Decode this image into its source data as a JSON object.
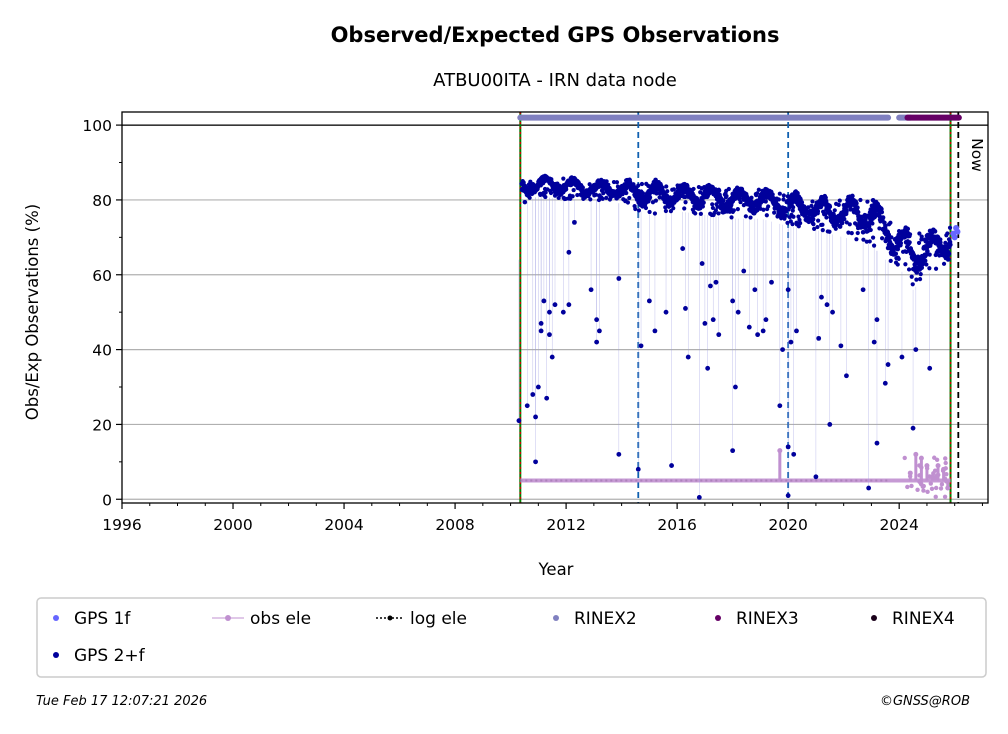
{
  "chart_data": {
    "type": "scatter",
    "title": "Observed/Expected GPS Observations",
    "subtitle": "ATBU00ITA - IRN data node",
    "xlabel": "Year",
    "ylabel": "Obs/Exp Observations (%)",
    "xlim": [
      1996,
      2027.2
    ],
    "ylim": [
      -1,
      103.5
    ],
    "x_ticks": [
      "1996",
      "2000",
      "2004",
      "2008",
      "2012",
      "2016",
      "2020",
      "2024"
    ],
    "y_ticks": [
      "0",
      "20",
      "40",
      "60",
      "80",
      "100"
    ],
    "grid": "horizontal",
    "now_label": "Now",
    "vertical_lines": [
      {
        "x": 2010.35,
        "style": "green-solid-red-dotted",
        "meaning": "start"
      },
      {
        "x": 2014.6,
        "style": "blue-dashed",
        "meaning": "event"
      },
      {
        "x": 2020.0,
        "style": "blue-dashed",
        "meaning": "event"
      },
      {
        "x": 2025.85,
        "style": "green-solid-red-dotted",
        "meaning": "end"
      },
      {
        "x": 2026.13,
        "style": "black-dashed",
        "meaning": "Now"
      }
    ],
    "series": [
      {
        "name": "GPS 2+f",
        "color": "#00009c",
        "marker": "dot",
        "envelope": {
          "x": [
            2010.4,
            2011.0,
            2012.0,
            2013.0,
            2014.0,
            2015.0,
            2016.0,
            2017.0,
            2018.0,
            2019.0,
            2020.0,
            2021.0,
            2022.0,
            2023.0,
            2023.5,
            2024.0,
            2024.5,
            2025.0,
            2025.5,
            2025.85
          ],
          "upper": [
            85,
            86,
            86,
            85,
            85,
            85,
            84,
            84,
            83,
            83,
            82,
            81,
            80,
            82,
            76,
            74,
            70,
            73,
            70,
            73
          ],
          "lower": [
            79,
            81,
            80,
            80,
            79,
            76,
            77,
            76,
            75,
            75,
            73,
            72,
            70,
            68,
            64,
            62,
            56,
            60,
            62,
            64
          ]
        },
        "outliers": [
          [
            2010.3,
            21
          ],
          [
            2010.6,
            25
          ],
          [
            2010.8,
            28
          ],
          [
            2010.9,
            22
          ],
          [
            2011.0,
            30
          ],
          [
            2011.2,
            53
          ],
          [
            2010.9,
            10
          ],
          [
            2011.4,
            44
          ],
          [
            2011.5,
            38
          ],
          [
            2011.1,
            45
          ],
          [
            2011.3,
            27
          ],
          [
            2011.6,
            52
          ],
          [
            2011.1,
            47
          ],
          [
            2011.4,
            50
          ],
          [
            2011.9,
            50
          ],
          [
            2012.1,
            66
          ],
          [
            2012.1,
            52
          ],
          [
            2012.3,
            74
          ],
          [
            2012.9,
            56
          ],
          [
            2013.1,
            48
          ],
          [
            2013.1,
            42
          ],
          [
            2013.2,
            45
          ],
          [
            2013.9,
            59
          ],
          [
            2013.9,
            12
          ],
          [
            2014.6,
            8
          ],
          [
            2014.7,
            41
          ],
          [
            2015.0,
            53
          ],
          [
            2015.2,
            45
          ],
          [
            2015.6,
            50
          ],
          [
            2015.8,
            9
          ],
          [
            2016.2,
            67
          ],
          [
            2016.3,
            51
          ],
          [
            2016.4,
            38
          ],
          [
            2016.8,
            0.5
          ],
          [
            2016.9,
            63
          ],
          [
            2017.0,
            47
          ],
          [
            2017.1,
            35
          ],
          [
            2017.2,
            57
          ],
          [
            2017.3,
            48
          ],
          [
            2017.4,
            58
          ],
          [
            2017.5,
            44
          ],
          [
            2018.0,
            53
          ],
          [
            2018.0,
            13
          ],
          [
            2018.1,
            30
          ],
          [
            2018.2,
            50
          ],
          [
            2018.4,
            61
          ],
          [
            2018.6,
            46
          ],
          [
            2018.8,
            56
          ],
          [
            2018.9,
            44
          ],
          [
            2019.1,
            45
          ],
          [
            2019.2,
            48
          ],
          [
            2019.4,
            58
          ],
          [
            2019.7,
            25
          ],
          [
            2019.8,
            40
          ],
          [
            2020.0,
            56
          ],
          [
            2020.0,
            14
          ],
          [
            2020.0,
            1
          ],
          [
            2020.1,
            42
          ],
          [
            2020.2,
            12
          ],
          [
            2020.3,
            45
          ],
          [
            2021.0,
            6
          ],
          [
            2021.1,
            43
          ],
          [
            2021.2,
            54
          ],
          [
            2021.4,
            52
          ],
          [
            2021.5,
            20
          ],
          [
            2021.6,
            50
          ],
          [
            2021.9,
            41
          ],
          [
            2022.1,
            33
          ],
          [
            2022.7,
            56
          ],
          [
            2022.9,
            3
          ],
          [
            2023.1,
            42
          ],
          [
            2023.2,
            48
          ],
          [
            2023.5,
            31
          ],
          [
            2023.6,
            36
          ],
          [
            2023.2,
            15
          ],
          [
            2024.1,
            38
          ],
          [
            2024.5,
            19
          ],
          [
            2024.6,
            40
          ],
          [
            2025.1,
            35
          ]
        ]
      },
      {
        "name": "GPS 1f",
        "color": "#6666ff",
        "marker": "dot",
        "points": [
          [
            2025.95,
            71
          ],
          [
            2026.05,
            72.5
          ],
          [
            2026.0,
            70
          ],
          [
            2026.1,
            71.5
          ]
        ]
      },
      {
        "name": "obs ele",
        "color": "#c090d0",
        "marker": "dot-line",
        "baseline_y": 5,
        "x_range": [
          2010.35,
          2025.85
        ],
        "spikes": [
          [
            2019.7,
            13
          ],
          [
            2024.4,
            7
          ],
          [
            2024.6,
            12
          ],
          [
            2024.8,
            11
          ],
          [
            2025.0,
            9
          ],
          [
            2025.2,
            6
          ],
          [
            2025.4,
            9
          ],
          [
            2025.6,
            8
          ],
          [
            2025.75,
            3
          ]
        ]
      },
      {
        "name": "log ele",
        "color": "#000000",
        "marker": "dotted-line",
        "baseline_y": 5,
        "x_range": [
          2010.35,
          2023.6
        ]
      },
      {
        "name": "RINEX2",
        "color": "#8080c0",
        "marker": "bar",
        "y": 102,
        "ranges": [
          [
            2010.35,
            2023.6
          ],
          [
            2024.0,
            2024.4
          ]
        ]
      },
      {
        "name": "RINEX3",
        "color": "#660066",
        "marker": "bar",
        "y": 102,
        "ranges": [
          [
            2024.3,
            2026.15
          ]
        ]
      },
      {
        "name": "RINEX4",
        "color": "#1a001a",
        "marker": "bar",
        "y": 102,
        "ranges": []
      }
    ],
    "legend_position": "bottom"
  },
  "legend": {
    "items": [
      {
        "label": "GPS 1f",
        "color": "#6666ff",
        "kind": "dot"
      },
      {
        "label": "obs ele",
        "color": "#c090d0",
        "kind": "dot-line"
      },
      {
        "label": "log ele",
        "color": "#000000",
        "kind": "dotted-line"
      },
      {
        "label": "RINEX2",
        "color": "#8080c0",
        "kind": "dot"
      },
      {
        "label": "RINEX3",
        "color": "#660066",
        "kind": "dot"
      },
      {
        "label": "RINEX4",
        "color": "#1a001a",
        "kind": "dot"
      },
      {
        "label": "GPS 2+f",
        "color": "#00009c",
        "kind": "dot"
      }
    ]
  },
  "footer": {
    "timestamp": "Tue Feb 17 12:07:21 2026",
    "credit": "©GNSS@ROB"
  }
}
